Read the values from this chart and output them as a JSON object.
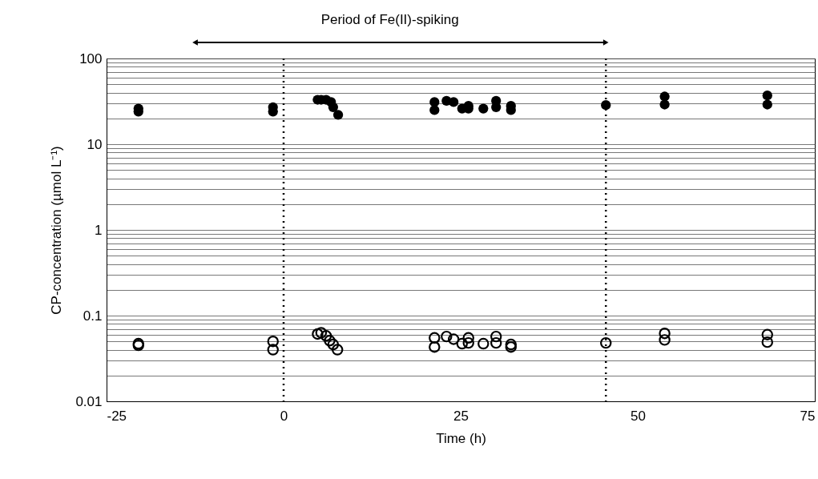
{
  "chart_data": {
    "type": "scatter",
    "xlabel": "Time (h)",
    "ylabel": "CP-concentration (µmol L⁻¹)",
    "annotations": [
      "Period of Fe(II)-spiking"
    ],
    "xlim": [
      -25,
      75
    ],
    "xticks": [
      -25,
      0,
      25,
      50,
      75
    ],
    "ylim": [
      0.01,
      100
    ],
    "log": "y",
    "yticks": [
      0.01,
      {
        "value": 0.02,
        "label": null
      },
      {
        "value": 0.03,
        "label": null
      },
      {
        "value": 0.04,
        "label": null
      },
      {
        "value": 0.05,
        "label": null
      },
      {
        "value": 0.06,
        "label": null
      },
      {
        "value": 0.07,
        "label": null
      },
      {
        "value": 0.08,
        "label": null
      },
      {
        "value": 0.09,
        "label": null
      },
      0.1,
      {
        "value": 0.2,
        "label": null
      },
      {
        "value": 0.3,
        "label": null
      },
      {
        "value": 0.4,
        "label": null
      },
      {
        "value": 0.5,
        "label": null
      },
      {
        "value": 0.6,
        "label": null
      },
      {
        "value": 0.7,
        "label": null
      },
      {
        "value": 0.8,
        "label": null
      },
      {
        "value": 0.9,
        "label": null
      },
      1,
      {
        "value": 2,
        "label": null
      },
      {
        "value": 3,
        "label": null
      },
      {
        "value": 4,
        "label": null
      },
      {
        "value": 5,
        "label": null
      },
      {
        "value": 6,
        "label": null
      },
      {
        "value": 7,
        "label": null
      },
      {
        "value": 8,
        "label": null
      },
      {
        "value": 9,
        "label": null
      },
      10,
      {
        "value": 20,
        "label": null
      },
      {
        "value": 30,
        "label": null
      },
      {
        "value": 40,
        "label": null
      },
      {
        "value": 50,
        "label": null
      },
      {
        "value": 60,
        "label": null
      },
      {
        "value": 70,
        "label": null
      },
      {
        "value": 80,
        "label": null
      },
      {
        "value": 90,
        "label": null
      },
      100
    ],
    "grid": "y",
    "marker": "circle",
    "ref_lines": [
      {
        "axis": "x",
        "value": 0,
        "color": "#000000",
        "line_style": "dotted"
      },
      {
        "axis": "x",
        "value": 45.5,
        "color": "#000000",
        "line_style": "dotted"
      }
    ],
    "series": [
      {
        "color": "#000000",
        "x": [
          -20.5,
          -20.5,
          -1.5,
          -1.5,
          4.8,
          5.3,
          6.0,
          6.7,
          7.0,
          7.7,
          21.3,
          21.3,
          23.0,
          24.0,
          25.2,
          26.1,
          26.1,
          28.2,
          30.0,
          30.0,
          32.1,
          32.1,
          45.5,
          53.8,
          53.8,
          68.3,
          68.3
        ],
        "values": [
          24,
          26,
          24,
          27,
          33,
          33,
          33,
          31,
          27,
          22,
          31,
          25,
          32,
          31,
          26,
          28,
          26,
          26,
          32,
          27,
          28,
          25,
          28.6,
          36,
          29,
          37,
          29
        ]
      },
      {
        "color": "#000000",
        "x": [
          -20.5,
          -20.5,
          -1.5,
          -1.5,
          4.8,
          5.3,
          6.0,
          6.5,
          7.0,
          7.6,
          21.3,
          21.3,
          23.0,
          24.0,
          25.2,
          26.1,
          26.1,
          28.2,
          30.0,
          30.0,
          32.1,
          32.1,
          45.5,
          53.8,
          53.8,
          68.3,
          68.3
        ],
        "values": [
          0.047,
          0.045,
          0.05,
          0.04,
          0.061,
          0.063,
          0.058,
          0.051,
          0.046,
          0.04,
          0.055,
          0.043,
          0.057,
          0.053,
          0.047,
          0.055,
          0.048,
          0.047,
          0.057,
          0.048,
          0.046,
          0.043,
          0.048,
          0.062,
          0.052,
          0.06,
          0.049
        ]
      }
    ]
  }
}
